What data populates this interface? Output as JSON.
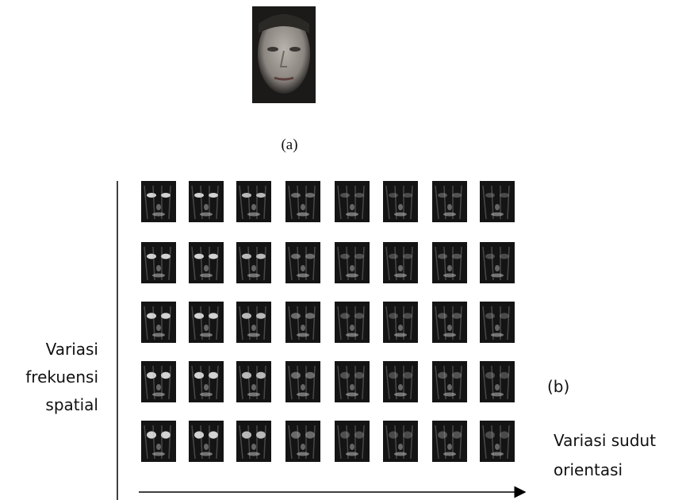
{
  "figure": {
    "label_a": "(a)",
    "label_b": "(b)",
    "vertical_axis_label": [
      "Variasi",
      "frekuensi",
      "spatial"
    ],
    "horizontal_axis_label": [
      "Variasi sudut",
      "orientasi"
    ]
  }
}
